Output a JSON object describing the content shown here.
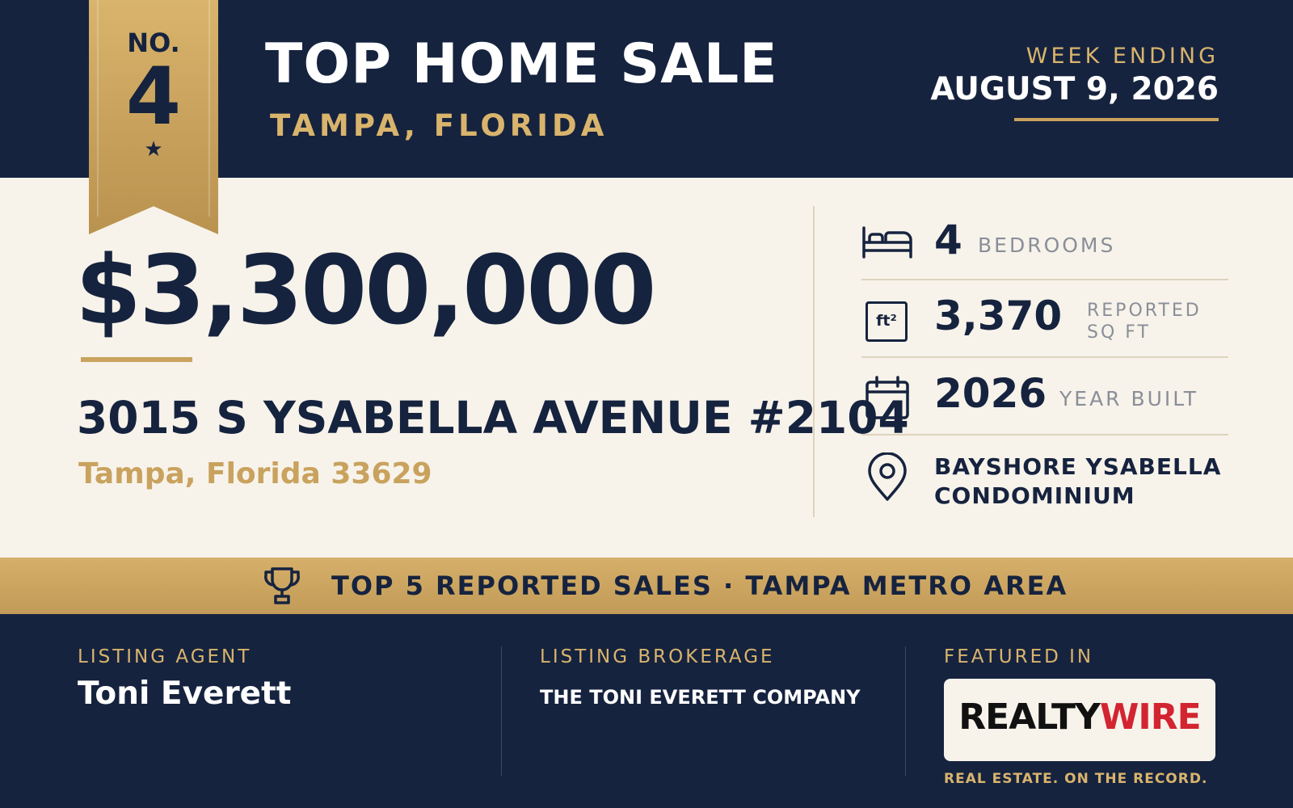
{
  "header": {
    "rank_prefix": "NO.",
    "rank": "4",
    "title": "TOP HOME SALE",
    "location": "TAMPA, FLORIDA",
    "week_label": "WEEK ENDING",
    "week_date": "AUGUST 9, 2026"
  },
  "listing": {
    "price": "$3,300,000",
    "street": "3015 S YSABELLA AVENUE #2104",
    "city_line": "Tampa, Florida 33629"
  },
  "stats": {
    "bedrooms_value": "4",
    "bedrooms_label": "BEDROOMS",
    "sqft_value": "3,370",
    "sqft_label_1": "REPORTED",
    "sqft_label_2": "SQ FT",
    "sqft_icon_text": "ft²",
    "year_value": "2026",
    "year_label": "YEAR BUILT",
    "community_1": "BAYSHORE YSABELLA",
    "community_2": "CONDOMINIUM"
  },
  "band": {
    "text": "TOP 5 REPORTED SALES · TAMPA METRO AREA"
  },
  "footer": {
    "agent_label": "LISTING AGENT",
    "agent_name": "Toni Everett",
    "brokerage_label": "LISTING BROKERAGE",
    "brokerage_name": "THE TONI EVERETT COMPANY",
    "featured_label": "FEATURED IN",
    "logo_part_1": "REALTY",
    "logo_part_2": "WIRE",
    "tagline": "REAL ESTATE. ON THE RECORD."
  },
  "icons": [
    "bed-icon",
    "square-feet-icon",
    "calendar-icon",
    "location-pin-icon",
    "trophy-icon",
    "star-icon"
  ],
  "colors": {
    "navy": "#16233F",
    "gold": "#C9A25E",
    "cream": "#F7F3EA",
    "logo_red": "#D32431"
  }
}
